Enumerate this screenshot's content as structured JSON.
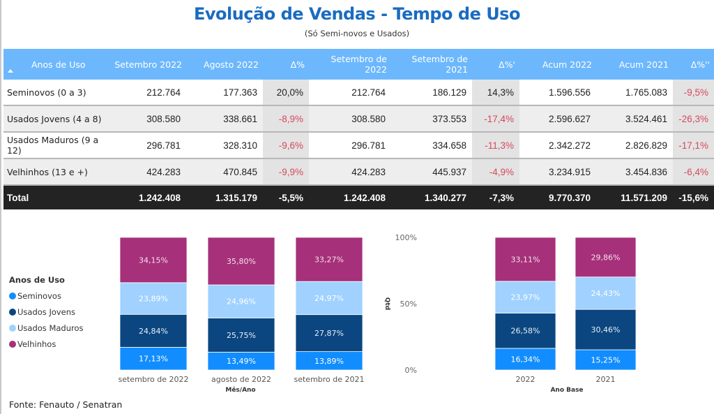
{
  "header": {
    "title": "Evolução de Vendas - Tempo de Uso",
    "subtitle": "(Só Semi-novos e Usados)"
  },
  "table": {
    "columns": [
      "Anos de Uso",
      "Setembro 2022",
      "Agosto 2022",
      "Δ%",
      "Setembro de 2022",
      "Setembro de 2021",
      "Δ%'",
      "Acum 2022",
      "Acum 2021",
      "Δ%''"
    ],
    "sort_icon": "sort-ascending-icon",
    "rows": [
      {
        "name": "Seminovos (0 a 3)",
        "cells": [
          "212.764",
          "177.363",
          "20,0%",
          "212.764",
          "186.129",
          "14,3%",
          "1.596.556",
          "1.765.083",
          "-9,5%"
        ]
      },
      {
        "name": "Usados Jovens (4 a 8)",
        "cells": [
          "308.580",
          "338.661",
          "-8,9%",
          "308.580",
          "373.553",
          "-17,4%",
          "2.596.627",
          "3.524.461",
          "-26,3%"
        ]
      },
      {
        "name": "Usados Maduros (9 a 12)",
        "cells": [
          "296.781",
          "328.310",
          "-9,6%",
          "296.781",
          "334.658",
          "-11,3%",
          "2.342.272",
          "2.826.829",
          "-17,1%"
        ]
      },
      {
        "name": "Velhinhos (13 e +)",
        "cells": [
          "424.283",
          "470.845",
          "-9,9%",
          "424.283",
          "445.937",
          "-4,9%",
          "3.234.915",
          "3.454.836",
          "-6,4%"
        ]
      }
    ],
    "total": {
      "name": "Total",
      "cells": [
        "1.242.408",
        "1.315.179",
        "-5,5%",
        "1.242.408",
        "1.340.277",
        "-7,3%",
        "9.770.370",
        "11.571.209",
        "-15,6%"
      ]
    },
    "negative_color": "#d6485d",
    "header_color": "#6db8fd"
  },
  "legend": {
    "title": "Anos de Uso",
    "items": [
      {
        "label": "Seminovos",
        "color": "#118dff"
      },
      {
        "label": "Usados Jovens",
        "color": "#0b4680"
      },
      {
        "label": "Usados Maduros",
        "color": "#a0d1ff"
      },
      {
        "label": "Velhinhos",
        "color": "#a6307a"
      }
    ]
  },
  "source": "Fonte: Fenauto / Senatran",
  "chart_data": [
    {
      "type": "bar",
      "stacked": "100%",
      "xlabel": "Mês/Ano",
      "ylabel": "Qtd",
      "yticks": [
        "0%",
        "50%",
        "100%"
      ],
      "ylim": [
        0,
        100
      ],
      "categories": [
        "setembro de 2022",
        "agosto de 2022",
        "setembro de 2021"
      ],
      "series": [
        {
          "name": "Seminovos",
          "values": [
            17.13,
            13.49,
            13.89
          ],
          "labels": [
            "17,13%",
            "13,49%",
            "13,89%"
          ]
        },
        {
          "name": "Usados Jovens",
          "values": [
            24.84,
            25.75,
            27.87
          ],
          "labels": [
            "24,84%",
            "25,75%",
            "27,87%"
          ]
        },
        {
          "name": "Usados Maduros",
          "values": [
            23.89,
            24.96,
            24.97
          ],
          "labels": [
            "23,89%",
            "24,96%",
            "24,97%"
          ]
        },
        {
          "name": "Velhinhos",
          "values": [
            34.15,
            35.8,
            33.27
          ],
          "labels": [
            "34,15%",
            "35,80%",
            "33,27%"
          ]
        }
      ],
      "legend": "left"
    },
    {
      "type": "bar",
      "stacked": "100%",
      "xlabel": "Ano Base",
      "ylabel": "",
      "ylim": [
        0,
        100
      ],
      "categories": [
        "2022",
        "2021"
      ],
      "series": [
        {
          "name": "Seminovos",
          "values": [
            16.34,
            15.25
          ],
          "labels": [
            "16,34%",
            "15,25%"
          ]
        },
        {
          "name": "Usados Jovens",
          "values": [
            26.58,
            30.46
          ],
          "labels": [
            "26,58%",
            "30,46%"
          ]
        },
        {
          "name": "Usados Maduros",
          "values": [
            23.97,
            24.43
          ],
          "labels": [
            "23,97%",
            "24,43%"
          ]
        },
        {
          "name": "Velhinhos",
          "values": [
            33.11,
            29.86
          ],
          "labels": [
            "33,11%",
            "29,86%"
          ]
        }
      ]
    }
  ]
}
